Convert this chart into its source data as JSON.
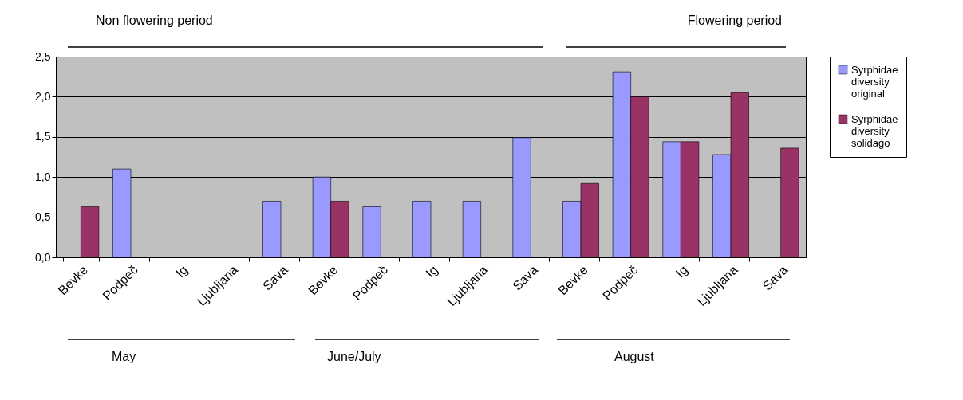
{
  "chart_data": {
    "type": "bar",
    "categories": [
      "Bevke",
      "Podpeč",
      "Ig",
      "Ljubljana",
      "Sava",
      "Bevke",
      "Podpeč",
      "Ig",
      "Ljubljana",
      "Sava",
      "Bevke",
      "Podpeč",
      "Ig",
      "Ljubljana",
      "Sava"
    ],
    "series": [
      {
        "name": "Syrphidae diversity original",
        "color": "#9999ff",
        "values": [
          null,
          1.1,
          null,
          null,
          0.7,
          1.0,
          0.63,
          0.7,
          0.7,
          1.49,
          0.7,
          2.31,
          1.44,
          1.28,
          null
        ]
      },
      {
        "name": "Syrphidae diversity solidago",
        "color": "#993366",
        "values": [
          0.63,
          null,
          null,
          null,
          null,
          0.7,
          null,
          null,
          null,
          null,
          0.92,
          2.0,
          1.44,
          2.05,
          1.36
        ]
      }
    ],
    "ylim": [
      0,
      2.5
    ],
    "yticks": [
      {
        "value": 0,
        "label": "0,0"
      },
      {
        "value": 0.5,
        "label": "0,5"
      },
      {
        "value": 1,
        "label": "1,0"
      },
      {
        "value": 1.5,
        "label": "1,5"
      },
      {
        "value": 2,
        "label": "2,0"
      },
      {
        "value": 2.5,
        "label": "2,5"
      }
    ],
    "grid": "y",
    "legend": "top right",
    "annotations": [
      "Non flowering period",
      "Flowering period",
      "May",
      "June/July",
      "August"
    ]
  }
}
